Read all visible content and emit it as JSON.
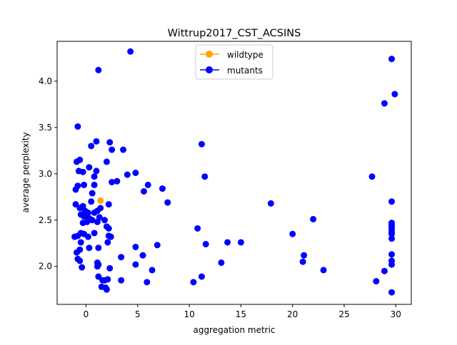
{
  "chart_data": {
    "type": "scatter",
    "title": "Wittrup2017_CST_ACSINS",
    "xlabel": "aggregation metric",
    "ylabel": "average perplexity",
    "xlim": [
      -2.8,
      31.5
    ],
    "ylim": [
      1.59,
      4.43
    ],
    "xticks": [
      0,
      5,
      10,
      15,
      20,
      25,
      30
    ],
    "yticks": [
      2.0,
      2.5,
      3.0,
      3.5,
      4.0
    ],
    "xtick_labels": [
      "0",
      "5",
      "10",
      "15",
      "20",
      "25",
      "30"
    ],
    "ytick_labels": [
      "2.0",
      "2.5",
      "3.0",
      "3.5",
      "4.0"
    ],
    "legend": {
      "placement": "upper center"
    },
    "colors": {
      "wildtype": "#ffa500",
      "mutants": "#0000ff"
    },
    "series": [
      {
        "name": "wildtype",
        "color": "#ffa500",
        "points": [
          [
            1.4,
            2.71
          ]
        ]
      },
      {
        "name": "mutants",
        "color": "#0000ff",
        "points": [
          [
            4.3,
            4.32
          ],
          [
            1.2,
            4.12
          ],
          [
            -0.8,
            3.51
          ],
          [
            1.0,
            3.35
          ],
          [
            0.5,
            3.3
          ],
          [
            2.3,
            3.34
          ],
          [
            2.5,
            3.26
          ],
          [
            3.6,
            3.26
          ],
          [
            2.0,
            3.13
          ],
          [
            -0.6,
            3.15
          ],
          [
            -0.9,
            3.13
          ],
          [
            0.3,
            3.07
          ],
          [
            -0.7,
            3.03
          ],
          [
            -0.3,
            3.02
          ],
          [
            1.0,
            3.03
          ],
          [
            4.0,
            2.99
          ],
          [
            4.8,
            3.01
          ],
          [
            0.8,
            2.97
          ],
          [
            2.5,
            2.91
          ],
          [
            3.0,
            2.92
          ],
          [
            -0.2,
            2.88
          ],
          [
            -0.8,
            2.87
          ],
          [
            0.8,
            2.88
          ],
          [
            6.0,
            2.88
          ],
          [
            -1.0,
            2.83
          ],
          [
            5.6,
            2.81
          ],
          [
            7.4,
            2.84
          ],
          [
            0.6,
            2.79
          ],
          [
            1.4,
            2.63
          ],
          [
            7.9,
            2.69
          ],
          [
            0.5,
            2.7
          ],
          [
            2.2,
            2.67
          ],
          [
            -1.0,
            2.67
          ],
          [
            -0.6,
            2.63
          ],
          [
            -0.3,
            2.65
          ],
          [
            -0.1,
            2.6
          ],
          [
            0.2,
            2.58
          ],
          [
            0.8,
            2.58
          ],
          [
            -0.5,
            2.56
          ],
          [
            -0.2,
            2.54
          ],
          [
            1.1,
            2.6
          ],
          [
            1.3,
            2.53
          ],
          [
            0.3,
            2.52
          ],
          [
            0.6,
            2.5
          ],
          [
            -0.3,
            2.47
          ],
          [
            0.1,
            2.48
          ],
          [
            1.1,
            2.48
          ],
          [
            1.8,
            2.5
          ],
          [
            2.0,
            2.43
          ],
          [
            2.2,
            2.41
          ],
          [
            0.8,
            2.36
          ],
          [
            -0.5,
            2.36
          ],
          [
            -0.2,
            2.35
          ],
          [
            0.2,
            2.32
          ],
          [
            -1.1,
            2.32
          ],
          [
            -0.8,
            2.33
          ],
          [
            2.2,
            2.33
          ],
          [
            2.4,
            2.32
          ],
          [
            -0.5,
            2.26
          ],
          [
            2.1,
            2.26
          ],
          [
            0.3,
            2.2
          ],
          [
            1.2,
            2.2
          ],
          [
            -0.6,
            2.18
          ],
          [
            -0.9,
            2.15
          ],
          [
            4.8,
            2.21
          ],
          [
            6.9,
            2.23
          ],
          [
            3.4,
            2.1
          ],
          [
            5.5,
            2.12
          ],
          [
            -0.8,
            2.08
          ],
          [
            -0.6,
            2.06
          ],
          [
            1.1,
            2.04
          ],
          [
            1.2,
            2.02
          ],
          [
            1.1,
            2.0
          ],
          [
            -0.4,
            1.99
          ],
          [
            2.3,
            1.98
          ],
          [
            4.8,
            2.02
          ],
          [
            6.4,
            1.96
          ],
          [
            1.2,
            1.89
          ],
          [
            1.6,
            1.85
          ],
          [
            2.1,
            1.86
          ],
          [
            1.8,
            1.85
          ],
          [
            3.4,
            1.85
          ],
          [
            5.9,
            1.83
          ],
          [
            1.5,
            1.78
          ],
          [
            1.9,
            1.77
          ],
          [
            2.0,
            1.75
          ],
          [
            10.4,
            1.83
          ],
          [
            11.2,
            1.89
          ],
          [
            10.8,
            2.41
          ],
          [
            11.6,
            2.24
          ],
          [
            13.1,
            2.04
          ],
          [
            13.7,
            2.26
          ],
          [
            15.0,
            2.26
          ],
          [
            11.2,
            3.32
          ],
          [
            11.5,
            2.97
          ],
          [
            17.9,
            2.68
          ],
          [
            20.0,
            2.35
          ],
          [
            21.1,
            2.12
          ],
          [
            21.0,
            2.05
          ],
          [
            22.0,
            2.51
          ],
          [
            23.0,
            1.96
          ],
          [
            27.7,
            2.97
          ],
          [
            28.9,
            3.76
          ],
          [
            29.6,
            4.24
          ],
          [
            29.9,
            3.86
          ],
          [
            29.6,
            2.7
          ],
          [
            29.6,
            2.47
          ],
          [
            29.6,
            2.45
          ],
          [
            29.6,
            2.43
          ],
          [
            29.6,
            2.4
          ],
          [
            29.6,
            2.37
          ],
          [
            29.6,
            2.35
          ],
          [
            29.6,
            2.3
          ],
          [
            29.6,
            2.13
          ],
          [
            29.6,
            2.06
          ],
          [
            29.6,
            2.02
          ],
          [
            28.9,
            1.95
          ],
          [
            28.1,
            1.84
          ],
          [
            29.6,
            1.72
          ]
        ]
      }
    ]
  }
}
